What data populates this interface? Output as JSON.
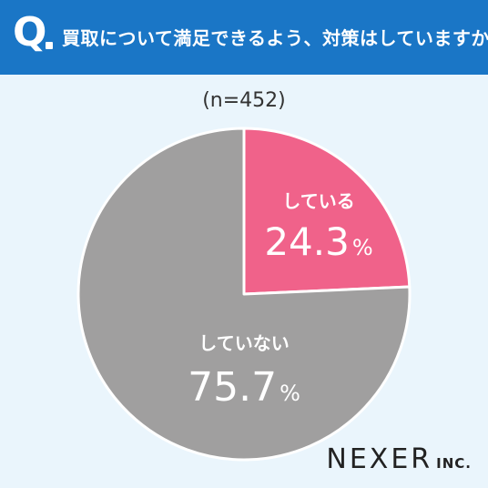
{
  "question": {
    "letter": "Q",
    "text": "買取について満足できるよう、対策はしていますか?"
  },
  "sample_label": "(n=452)",
  "chart_data": {
    "type": "pie",
    "title": "買取について満足できるよう、対策はしていますか?",
    "slices": [
      {
        "label": "している",
        "value": 24.3,
        "display": "24.3",
        "unit": "%",
        "color": "#f0628a"
      },
      {
        "label": "していない",
        "value": 75.7,
        "display": "75.7",
        "unit": "%",
        "color": "#a09f9f"
      }
    ],
    "start": "12 o'clock",
    "direction": "clockwise"
  },
  "logo": {
    "main": "NEXER",
    "suffix": "INC."
  }
}
